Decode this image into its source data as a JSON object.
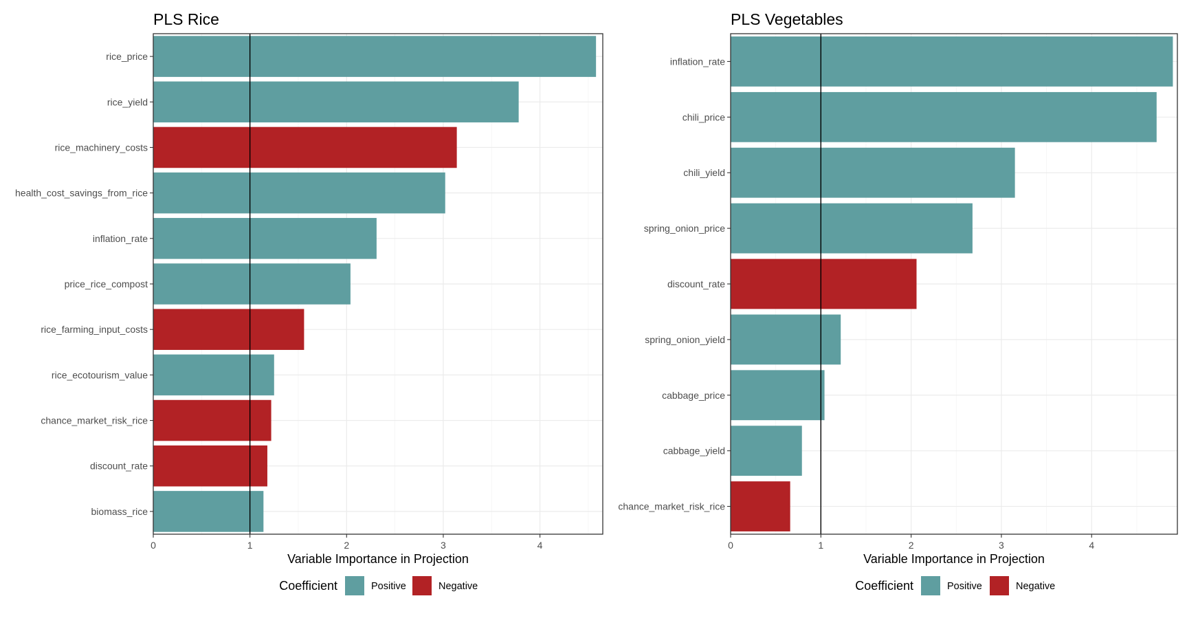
{
  "colors": {
    "positive": "#5f9ea0",
    "negative": "#b22225"
  },
  "reference_line": 1,
  "chart_data": [
    {
      "type": "bar",
      "orientation": "horizontal",
      "title": "PLS Rice",
      "xlabel": "Variable Importance in Projection",
      "ylabel": "",
      "xlim": [
        0,
        4.65
      ],
      "xticks": [
        "0",
        "1",
        "2",
        "3",
        "4"
      ],
      "xtick_values": [
        0,
        1,
        2,
        3,
        4
      ],
      "grid": true,
      "legend_position": "bottom",
      "legend": {
        "title": "Coefficient",
        "entries": [
          {
            "label": "Positive",
            "sign": "positive"
          },
          {
            "label": "Negative",
            "sign": "negative"
          }
        ]
      },
      "bars": [
        {
          "label": "rice_price",
          "value": 4.58,
          "sign": "positive"
        },
        {
          "label": "rice_yield",
          "value": 3.78,
          "sign": "positive"
        },
        {
          "label": "rice_machinery_costs",
          "value": 3.14,
          "sign": "negative"
        },
        {
          "label": "health_cost_savings_from_rice",
          "value": 3.02,
          "sign": "positive"
        },
        {
          "label": "inflation_rate",
          "value": 2.31,
          "sign": "positive"
        },
        {
          "label": "price_rice_compost",
          "value": 2.04,
          "sign": "positive"
        },
        {
          "label": "rice_farming_input_costs",
          "value": 1.56,
          "sign": "negative"
        },
        {
          "label": "rice_ecotourism_value",
          "value": 1.25,
          "sign": "positive"
        },
        {
          "label": "chance_market_risk_rice",
          "value": 1.22,
          "sign": "negative"
        },
        {
          "label": "discount_rate",
          "value": 1.18,
          "sign": "negative"
        },
        {
          "label": "biomass_rice",
          "value": 1.14,
          "sign": "positive"
        }
      ]
    },
    {
      "type": "bar",
      "orientation": "horizontal",
      "title": "PLS Vegetables",
      "xlabel": "Variable Importance in Projection",
      "ylabel": "",
      "xlim": [
        0,
        4.95
      ],
      "xticks": [
        "0",
        "1",
        "2",
        "3",
        "4"
      ],
      "xtick_values": [
        0,
        1,
        2,
        3,
        4
      ],
      "grid": true,
      "legend_position": "bottom",
      "legend": {
        "title": "Coefficient",
        "entries": [
          {
            "label": "Positive",
            "sign": "positive"
          },
          {
            "label": "Negative",
            "sign": "negative"
          }
        ]
      },
      "bars": [
        {
          "label": "inflation_rate",
          "value": 4.9,
          "sign": "positive"
        },
        {
          "label": "chili_price",
          "value": 4.72,
          "sign": "positive"
        },
        {
          "label": "chili_yield",
          "value": 3.15,
          "sign": "positive"
        },
        {
          "label": "spring_onion_price",
          "value": 2.68,
          "sign": "positive"
        },
        {
          "label": "discount_rate",
          "value": 2.06,
          "sign": "negative"
        },
        {
          "label": "spring_onion_yield",
          "value": 1.22,
          "sign": "positive"
        },
        {
          "label": "cabbage_price",
          "value": 1.04,
          "sign": "positive"
        },
        {
          "label": "cabbage_yield",
          "value": 0.79,
          "sign": "positive"
        },
        {
          "label": "chance_market_risk_rice",
          "value": 0.66,
          "sign": "negative"
        }
      ]
    }
  ]
}
